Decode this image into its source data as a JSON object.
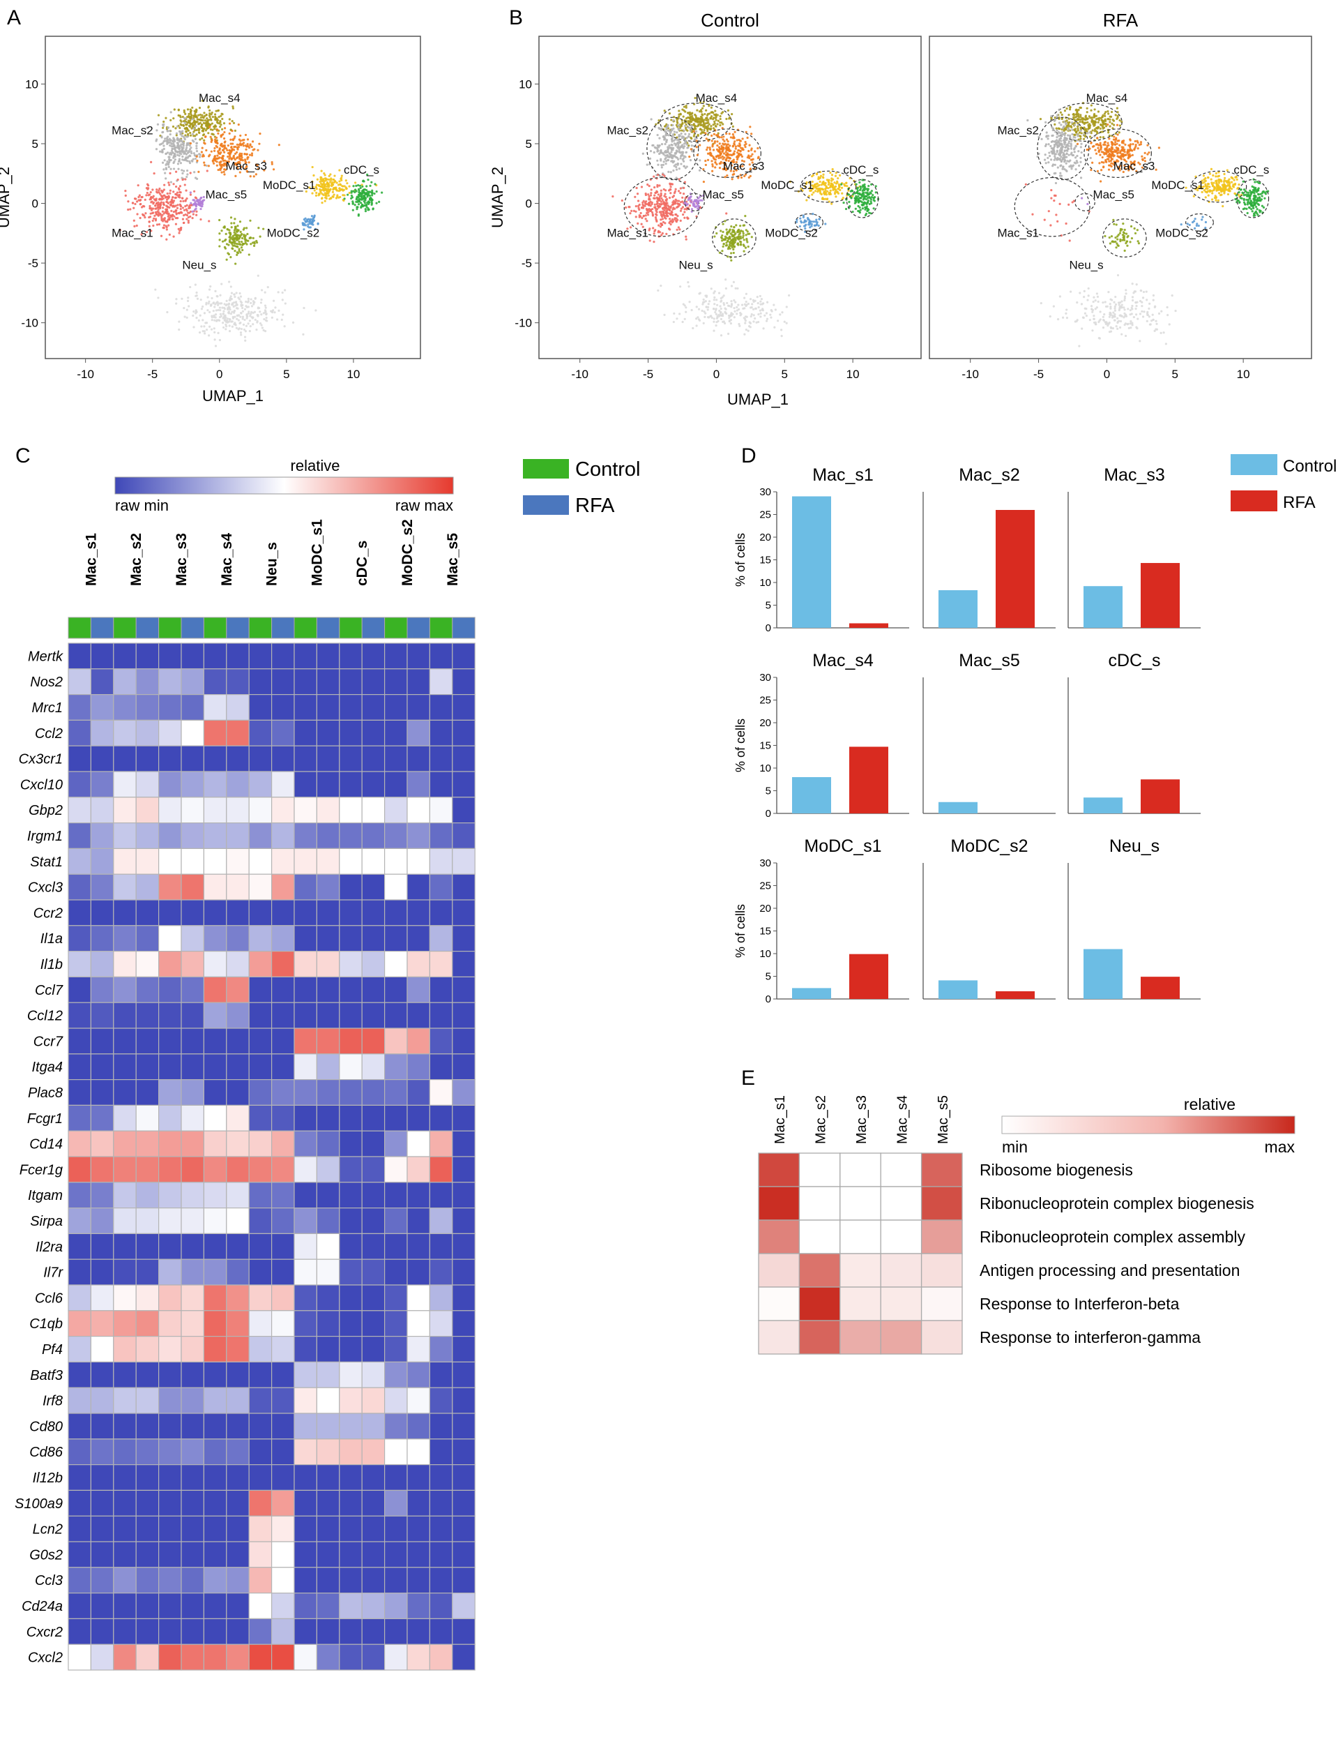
{
  "panels": {
    "A": "A",
    "B": "B",
    "C": "C",
    "D": "D",
    "E": "E"
  },
  "chart_data": [
    {
      "panel": "A",
      "type": "scatter",
      "xlabel": "UMAP_1",
      "ylabel": "UMAP_2",
      "xlim": [
        -13,
        15
      ],
      "ylim": [
        -13,
        14
      ],
      "xticks": [
        -10,
        -5,
        0,
        5,
        10
      ],
      "yticks": [
        10,
        5,
        0,
        -5,
        -10
      ],
      "clusters": [
        {
          "name": "Mac_s4",
          "color": "#a89a1e",
          "center": [
            -1.5,
            6.8
          ],
          "spread": [
            1.8,
            1.1
          ],
          "n": 260,
          "label_at": [
            0.0,
            8.5
          ]
        },
        {
          "name": "Mac_s2",
          "color": "#b4b4b4",
          "center": [
            -3.2,
            4.6
          ],
          "spread": [
            1.3,
            1.8
          ],
          "n": 260,
          "label_at": [
            -6.5,
            5.8
          ]
        },
        {
          "name": "Mac_s3",
          "color": "#ef7d1f",
          "center": [
            0.8,
            4.2
          ],
          "spread": [
            1.7,
            1.4
          ],
          "n": 260,
          "label_at": [
            2.0,
            2.8
          ]
        },
        {
          "name": "Mac_s1",
          "color": "#f16b63",
          "center": [
            -4.0,
            -0.3
          ],
          "spread": [
            1.9,
            1.7
          ],
          "n": 340,
          "label_at": [
            -6.5,
            -2.8
          ]
        },
        {
          "name": "Mac_s5",
          "color": "#b37fd8",
          "center": [
            -1.6,
            0.1
          ],
          "spread": [
            0.5,
            0.5
          ],
          "n": 45,
          "label_at": [
            0.5,
            0.4
          ]
        },
        {
          "name": "Neu_s",
          "color": "#8ea51f",
          "center": [
            1.3,
            -2.9
          ],
          "spread": [
            1.1,
            1.1
          ],
          "n": 150,
          "label_at": [
            -1.5,
            -5.5
          ]
        },
        {
          "name": "MoDC_s1",
          "color": "#f2c31c",
          "center": [
            8.2,
            1.4
          ],
          "spread": [
            1.4,
            0.9
          ],
          "n": 180,
          "label_at": [
            5.2,
            1.2
          ]
        },
        {
          "name": "cDC_s",
          "color": "#2dae3c",
          "center": [
            10.7,
            0.4
          ],
          "spread": [
            0.8,
            1.1
          ],
          "n": 150,
          "label_at": [
            10.6,
            2.5
          ]
        },
        {
          "name": "MoDC_s2",
          "color": "#5b9bd5",
          "center": [
            6.8,
            -1.6
          ],
          "spread": [
            0.7,
            0.5
          ],
          "n": 45,
          "label_at": [
            5.5,
            -2.8
          ]
        },
        {
          "name": "",
          "color": "#dcdcdc",
          "center": [
            1.0,
            -9.0
          ],
          "spread": [
            3.2,
            1.6
          ],
          "n": 320,
          "label_at": null
        }
      ]
    },
    {
      "panel": "B",
      "type": "scatter",
      "facets": [
        "Control",
        "RFA"
      ],
      "xlabel": "UMAP_1",
      "ylabel": "UMAP_2",
      "xlim": [
        -13,
        15
      ],
      "ylim": [
        -13,
        14
      ],
      "xticks": [
        -10,
        -5,
        0,
        5,
        10
      ],
      "yticks": [
        10,
        5,
        0,
        -5,
        -10
      ],
      "density_control": [
        1,
        1,
        1,
        1,
        1,
        1,
        1,
        1,
        1,
        0.7
      ],
      "density_rfa": [
        1,
        1,
        1,
        0.06,
        0.05,
        0.35,
        1,
        1,
        0.3,
        0.7
      ]
    },
    {
      "panel": "C",
      "type": "heatmap",
      "scale_title": "relative",
      "scale_min_label": "raw min",
      "scale_max_label": "raw max",
      "legend": [
        {
          "name": "Control",
          "color": "#3ab324"
        },
        {
          "name": "RFA",
          "color": "#4b77be"
        }
      ],
      "clusters": [
        "Mac_s1",
        "Mac_s2",
        "Mac_s3",
        "Mac_s4",
        "Neu_s",
        "MoDC_s1",
        "cDC_s",
        "MoDC_s2",
        "Mac_s5"
      ],
      "column_conditions": [
        "Control",
        "RFA",
        "Control",
        "RFA",
        "Control",
        "RFA",
        "Control",
        "RFA",
        "Control",
        "RFA",
        "Control",
        "RFA",
        "Control",
        "RFA",
        "Control",
        "RFA",
        "Control",
        "RFA"
      ],
      "genes": [
        "Mertk",
        "Nos2",
        "Mrc1",
        "Ccl2",
        "Cx3cr1",
        "Cxcl10",
        "Gbp2",
        "Irgm1",
        "Stat1",
        "Cxcl3",
        "Ccr2",
        "Il1a",
        "Il1b",
        "Ccl7",
        "Ccl12",
        "Ccr7",
        "Itga4",
        "Plac8",
        "Fcgr1",
        "Cd14",
        "Fcer1g",
        "Itgam",
        "Sirpa",
        "Il2ra",
        "Il7r",
        "Ccl6",
        "C1qb",
        "Pf4",
        "Batf3",
        "Irf8",
        "Cd80",
        "Cd86",
        "Il12b",
        "S100a9",
        "Lcn2",
        "G0s2",
        "Ccl3",
        "Cd24a",
        "Cxcr2",
        "Cxcl2"
      ],
      "values": [
        [
          0,
          0,
          0,
          0,
          0,
          0,
          0,
          0,
          0,
          0,
          0,
          0,
          0,
          0,
          0,
          0,
          0,
          0
        ],
        [
          0.35,
          0.05,
          0.3,
          0.2,
          0.3,
          0.25,
          0.05,
          0.05,
          0,
          0,
          0,
          0,
          0,
          0,
          0,
          0,
          0.4,
          0
        ],
        [
          0.12,
          0.22,
          0.18,
          0.15,
          0.12,
          0.1,
          0.42,
          0.38,
          0,
          0,
          0,
          0,
          0,
          0,
          0,
          0,
          0,
          0
        ],
        [
          0.08,
          0.3,
          0.35,
          0.32,
          0.4,
          0.5,
          0.85,
          0.85,
          0.05,
          0.1,
          0,
          0,
          0,
          0,
          0,
          0.2,
          0,
          0
        ],
        [
          0,
          0,
          0,
          0,
          0,
          0,
          0,
          0,
          0,
          0,
          0,
          0,
          0,
          0,
          0,
          0,
          0,
          0
        ],
        [
          0.08,
          0.15,
          0.45,
          0.4,
          0.2,
          0.25,
          0.3,
          0.25,
          0.3,
          0.45,
          0,
          0,
          0,
          0,
          0,
          0.15,
          0,
          0
        ],
        [
          0.4,
          0.38,
          0.55,
          0.6,
          0.45,
          0.48,
          0.45,
          0.45,
          0.48,
          0.55,
          0.52,
          0.55,
          0.5,
          0.5,
          0.4,
          0.5,
          0.48,
          0
        ],
        [
          0.1,
          0.25,
          0.35,
          0.3,
          0.22,
          0.28,
          0.3,
          0.3,
          0.2,
          0.3,
          0.15,
          0.12,
          0.12,
          0.12,
          0.15,
          0.2,
          0.1,
          0.05
        ],
        [
          0.3,
          0.25,
          0.55,
          0.55,
          0.5,
          0.5,
          0.5,
          0.52,
          0.5,
          0.55,
          0.55,
          0.55,
          0.5,
          0.5,
          0.5,
          0.5,
          0.4,
          0.4
        ],
        [
          0.08,
          0.15,
          0.35,
          0.3,
          0.8,
          0.85,
          0.55,
          0.55,
          0.52,
          0.75,
          0.1,
          0.15,
          0,
          0,
          0.5,
          0,
          0.1,
          0
        ],
        [
          0,
          0,
          0,
          0,
          0,
          0,
          0,
          0,
          0,
          0,
          0,
          0,
          0,
          0,
          0,
          0,
          0,
          0
        ],
        [
          0.05,
          0.1,
          0.15,
          0.1,
          0.5,
          0.35,
          0.2,
          0.15,
          0.3,
          0.25,
          0,
          0,
          0,
          0,
          0,
          0,
          0.3,
          0
        ],
        [
          0.35,
          0.3,
          0.55,
          0.52,
          0.75,
          0.68,
          0.45,
          0.4,
          0.75,
          0.88,
          0.6,
          0.6,
          0.4,
          0.35,
          0.5,
          0.6,
          0.6,
          0
        ],
        [
          0,
          0.15,
          0.2,
          0.12,
          0.08,
          0.12,
          0.85,
          0.8,
          0,
          0,
          0,
          0,
          0,
          0,
          0,
          0.2,
          0,
          0
        ],
        [
          0.02,
          0.05,
          0.02,
          0.02,
          0.02,
          0.02,
          0.25,
          0.2,
          0,
          0,
          0,
          0,
          0,
          0,
          0,
          0,
          0,
          0
        ],
        [
          0,
          0,
          0,
          0,
          0,
          0,
          0,
          0,
          0,
          0,
          0.85,
          0.85,
          0.9,
          0.9,
          0.65,
          0.75,
          0.05,
          0
        ],
        [
          0,
          0,
          0,
          0,
          0,
          0,
          0,
          0,
          0,
          0,
          0.45,
          0.3,
          0.48,
          0.42,
          0.2,
          0.15,
          0,
          0
        ],
        [
          0,
          0,
          0,
          0,
          0.25,
          0.22,
          0,
          0,
          0.1,
          0.15,
          0.15,
          0.12,
          0.1,
          0.1,
          0.12,
          0.05,
          0.52,
          0.2
        ],
        [
          0.1,
          0.12,
          0.4,
          0.48,
          0.35,
          0.45,
          0.5,
          0.55,
          0.05,
          0.05,
          0,
          0,
          0,
          0,
          0,
          0,
          0,
          0
        ],
        [
          0.68,
          0.65,
          0.72,
          0.72,
          0.75,
          0.75,
          0.62,
          0.6,
          0.62,
          0.7,
          0.15,
          0.1,
          0,
          0,
          0.2,
          0.5,
          0.7,
          0
        ],
        [
          0.9,
          0.85,
          0.82,
          0.82,
          0.85,
          0.88,
          0.8,
          0.85,
          0.82,
          0.8,
          0.45,
          0.35,
          0.05,
          0.05,
          0.52,
          0.62,
          0.9,
          0
        ],
        [
          0.12,
          0.15,
          0.35,
          0.3,
          0.35,
          0.38,
          0.4,
          0.42,
          0.1,
          0.12,
          0,
          0,
          0,
          0,
          0,
          0,
          0,
          0
        ],
        [
          0.25,
          0.2,
          0.42,
          0.42,
          0.45,
          0.45,
          0.48,
          0.5,
          0.05,
          0.1,
          0.2,
          0.1,
          0,
          0,
          0.1,
          0,
          0.3,
          0
        ],
        [
          0,
          0,
          0,
          0,
          0,
          0,
          0,
          0,
          0,
          0,
          0.45,
          0.5,
          0,
          0,
          0,
          0,
          0,
          0
        ],
        [
          0,
          0,
          0.02,
          0.02,
          0.3,
          0.2,
          0.2,
          0.1,
          0,
          0,
          0.48,
          0.48,
          0.05,
          0.05,
          0,
          0,
          0.05,
          0
        ],
        [
          0.35,
          0.45,
          0.52,
          0.55,
          0.65,
          0.6,
          0.85,
          0.78,
          0.62,
          0.65,
          0.05,
          0.02,
          0,
          0,
          0.05,
          0.5,
          0.3,
          0
        ],
        [
          0.72,
          0.7,
          0.75,
          0.78,
          0.62,
          0.6,
          0.88,
          0.82,
          0.45,
          0.48,
          0.05,
          0.02,
          0,
          0,
          0.05,
          0.5,
          0.4,
          0
        ],
        [
          0.35,
          0.5,
          0.65,
          0.62,
          0.58,
          0.62,
          0.88,
          0.85,
          0.35,
          0.38,
          0.02,
          0,
          0,
          0,
          0.05,
          0.45,
          0.15,
          0
        ],
        [
          0,
          0,
          0,
          0,
          0,
          0,
          0,
          0,
          0,
          0,
          0.35,
          0.35,
          0.45,
          0.42,
          0.2,
          0.15,
          0,
          0
        ],
        [
          0.3,
          0.3,
          0.35,
          0.35,
          0.2,
          0.2,
          0.3,
          0.3,
          0.05,
          0.05,
          0.55,
          0.5,
          0.58,
          0.6,
          0.4,
          0.48,
          0.05,
          0
        ],
        [
          0,
          0,
          0,
          0,
          0,
          0,
          0,
          0,
          0,
          0,
          0.3,
          0.3,
          0.3,
          0.3,
          0.15,
          0.1,
          0,
          0
        ],
        [
          0.08,
          0.12,
          0.1,
          0.12,
          0.15,
          0.18,
          0.1,
          0.12,
          0,
          0,
          0.6,
          0.62,
          0.65,
          0.65,
          0.5,
          0.5,
          0,
          0
        ],
        [
          0,
          0,
          0,
          0,
          0,
          0,
          0,
          0,
          0,
          0,
          0,
          0,
          0,
          0,
          0,
          0,
          0,
          0
        ],
        [
          0,
          0,
          0,
          0,
          0,
          0,
          0,
          0,
          0.85,
          0.75,
          0,
          0,
          0,
          0,
          0.2,
          0,
          0,
          0
        ],
        [
          0,
          0,
          0,
          0,
          0,
          0,
          0,
          0,
          0.6,
          0.55,
          0,
          0,
          0,
          0,
          0,
          0,
          0,
          0
        ],
        [
          0,
          0,
          0,
          0,
          0,
          0,
          0,
          0,
          0.58,
          0.5,
          0,
          0,
          0,
          0,
          0,
          0,
          0,
          0
        ],
        [
          0.1,
          0.12,
          0.2,
          0.12,
          0.15,
          0.1,
          0.22,
          0.2,
          0.68,
          0.5,
          0,
          0,
          0,
          0,
          0,
          0,
          0,
          0
        ],
        [
          0,
          0,
          0,
          0,
          0,
          0,
          0,
          0,
          0.5,
          0.38,
          0.08,
          0.1,
          0.32,
          0.3,
          0.25,
          0.1,
          0.05,
          0.35
        ],
        [
          0,
          0,
          0,
          0,
          0,
          0,
          0,
          0,
          0.12,
          0.32,
          0,
          0,
          0,
          0,
          0,
          0,
          0,
          0
        ],
        [
          0.5,
          0.4,
          0.8,
          0.62,
          0.9,
          0.85,
          0.85,
          0.8,
          0.95,
          0.95,
          0.48,
          0.15,
          0.05,
          0.05,
          0.45,
          0.6,
          0.65,
          0
        ]
      ]
    },
    {
      "panel": "D",
      "type": "bar",
      "ylabel": "% of cells",
      "ylim": [
        0,
        30
      ],
      "yticks": [
        0,
        5,
        10,
        15,
        20,
        25,
        30
      ],
      "series_names": [
        "Control",
        "RFA"
      ],
      "series_colors": [
        "#6cbde4",
        "#d92b20"
      ],
      "subplots": [
        {
          "title": "Mac_s1",
          "values": [
            29.0,
            1.0
          ]
        },
        {
          "title": "Mac_s2",
          "values": [
            8.3,
            26.0
          ]
        },
        {
          "title": "Mac_s3",
          "values": [
            9.2,
            14.3
          ]
        },
        {
          "title": "Mac_s4",
          "values": [
            8.0,
            14.7
          ]
        },
        {
          "title": "Mac_s5",
          "values": [
            2.5,
            0.0
          ]
        },
        {
          "title": "cDC_s",
          "values": [
            3.5,
            7.5
          ]
        },
        {
          "title": "MoDC_s1",
          "values": [
            2.4,
            9.9
          ]
        },
        {
          "title": "MoDC_s2",
          "values": [
            4.1,
            1.7
          ]
        },
        {
          "title": "Neu_s",
          "values": [
            11.0,
            4.9
          ]
        }
      ]
    },
    {
      "panel": "E",
      "type": "heatmap",
      "scale_title": "relative",
      "scale_min_label": "min",
      "scale_max_label": "max",
      "columns": [
        "Mac_s1",
        "Mac_s2",
        "Mac_s3",
        "Mac_s4",
        "Mac_s5"
      ],
      "rows": [
        "Ribosome biogenesis",
        "Ribonucleoprotein complex biogenesis",
        "Ribonucleoprotein complex assembly",
        "Antigen processing and presentation",
        "Response to Interferon-beta",
        "Response to interferon-gamma"
      ],
      "values": [
        [
          0.85,
          0,
          0,
          0,
          0.72
        ],
        [
          0.97,
          0,
          0,
          0,
          0.82
        ],
        [
          0.58,
          0,
          0,
          0,
          0.45
        ],
        [
          0.18,
          0.65,
          0.1,
          0.12,
          0.15
        ],
        [
          0.02,
          0.97,
          0.1,
          0.1,
          0.04
        ],
        [
          0.12,
          0.72,
          0.38,
          0.4,
          0.15
        ]
      ]
    }
  ]
}
